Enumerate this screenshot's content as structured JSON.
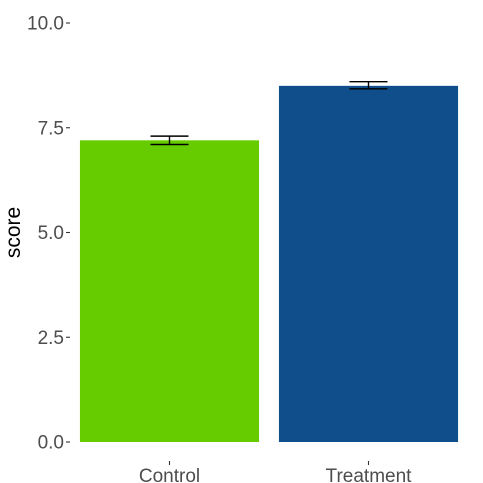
{
  "chart_data": {
    "type": "bar",
    "categories": [
      "Control",
      "Treatment"
    ],
    "values": [
      7.2,
      8.5
    ],
    "error": [
      [
        7.1,
        7.3
      ],
      [
        8.43,
        8.6
      ]
    ],
    "colors": [
      "#66cc00",
      "#0f4e8a"
    ],
    "title": "",
    "xlabel": "",
    "ylabel": "score",
    "ylim": [
      0,
      10
    ],
    "y_ticks": [
      0.0,
      2.5,
      5.0,
      7.5,
      10.0
    ],
    "y_tick_labels": [
      "0.0",
      "2.5",
      "5.0",
      "7.5",
      "10.0"
    ],
    "grid": false,
    "legend": "none"
  }
}
